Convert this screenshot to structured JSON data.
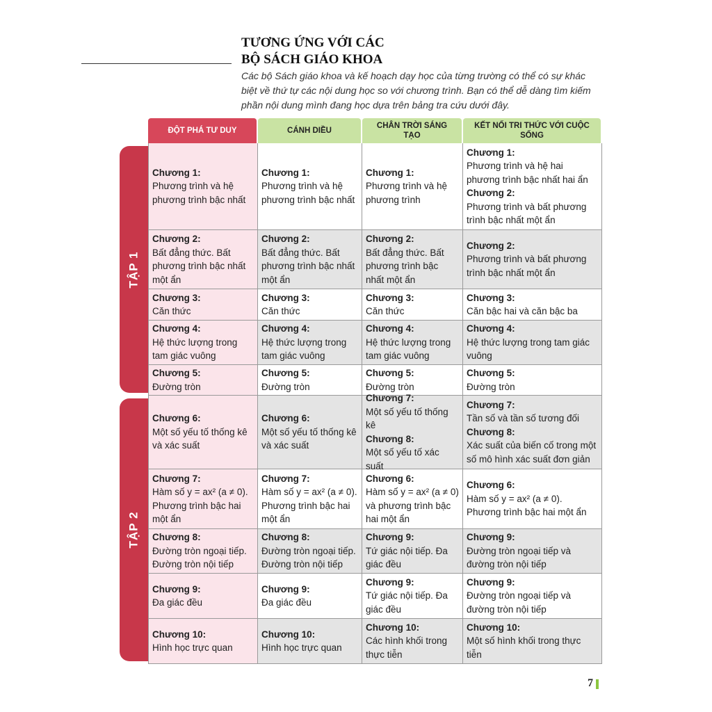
{
  "header": {
    "title_lines": [
      "TƯƠNG ỨNG VỚI CÁC",
      "BỘ SÁCH GIÁO KHOA"
    ],
    "intro": "Các bộ Sách giáo khoa và kế hoạch dạy học của từng trường có thể có sự khác biệt về thứ tự các nội dung học so với chương trình. Bạn có thể dễ dàng tìm kiếm phần nội dung mình đang học dựa trên bảng tra cứu dưới đây."
  },
  "table": {
    "columns": [
      "ĐỘT PHÁ TƯ DUY",
      "CÁNH DIỀU",
      "CHÂN TRỜI SÁNG TẠO",
      "KẾT NỐI TRI THỨC VỚI CUỘC SỐNG"
    ],
    "groups": [
      {
        "label": "TẬP 1",
        "rows": [
          [
            [
              {
                "chapter": "Chương 1:",
                "text": "Phương trình và hệ phương trình bậc nhất"
              }
            ],
            [
              {
                "chapter": "Chương 1:",
                "text": "Phương trình và hệ phương trình bậc nhất"
              }
            ],
            [
              {
                "chapter": "Chương 1:",
                "text": "Phương trình và hệ phương trình"
              }
            ],
            [
              {
                "chapter": "Chương 1:",
                "text": "Phương trình và hệ hai phương trình bậc nhất hai ẩn"
              },
              {
                "chapter": "Chương 2:",
                "text": "Phương trình và bất phương trình bậc nhất một ẩn"
              }
            ]
          ],
          [
            [
              {
                "chapter": "Chương 2:",
                "text": "Bất đẳng thức. Bất phương trình bậc nhất một ẩn"
              }
            ],
            [
              {
                "chapter": "Chương 2:",
                "text": "Bất đẳng thức. Bất phương trình bậc nhất một ẩn"
              }
            ],
            [
              {
                "chapter": "Chương 2:",
                "text": "Bất đẳng thức. Bất phương trình bậc nhất một ẩn"
              }
            ],
            [
              {
                "chapter": "Chương 2:",
                "text": "Phương trình và bất phương trình bậc nhất một ẩn"
              }
            ]
          ],
          [
            [
              {
                "chapter": "Chương 3:",
                "text": "Căn thức"
              }
            ],
            [
              {
                "chapter": "Chương 3:",
                "text": "Căn thức"
              }
            ],
            [
              {
                "chapter": "Chương 3:",
                "text": "Căn thức"
              }
            ],
            [
              {
                "chapter": "Chương 3:",
                "text": "Căn bậc hai và căn bậc ba"
              }
            ]
          ],
          [
            [
              {
                "chapter": "Chương 4:",
                "text": "Hệ thức lượng trong tam giác vuông"
              }
            ],
            [
              {
                "chapter": "Chương 4:",
                "text": "Hệ thức lượng trong tam giác vuông"
              }
            ],
            [
              {
                "chapter": "Chương 4:",
                "text": "Hệ thức lượng trong tam giác vuông"
              }
            ],
            [
              {
                "chapter": "Chương 4:",
                "text": "Hệ thức lượng trong tam giác vuông"
              }
            ]
          ],
          [
            [
              {
                "chapter": "Chương 5:",
                "text": "Đường tròn"
              }
            ],
            [
              {
                "chapter": "Chương 5:",
                "text": "Đường tròn"
              }
            ],
            [
              {
                "chapter": "Chương 5:",
                "text": "Đường tròn"
              }
            ],
            [
              {
                "chapter": "Chương 5:",
                "text": "Đường tròn"
              }
            ]
          ]
        ]
      },
      {
        "label": "TẬP 2",
        "rows": [
          [
            [
              {
                "chapter": "Chương 6:",
                "text": "Một số yếu tố thống kê và xác suất"
              }
            ],
            [
              {
                "chapter": "Chương 6:",
                "text": "Một số yếu tố thống kê và xác suất"
              }
            ],
            [
              {
                "chapter": "Chương 7:",
                "text": "Một số yếu tố thống kê"
              },
              {
                "chapter": "Chương 8:",
                "text": "Một số yếu tố xác suất"
              }
            ],
            [
              {
                "chapter": "Chương 7:",
                "text": "Tần số và tần số tương đối"
              },
              {
                "chapter": "Chương 8:",
                "text": "Xác suất của biến cố trong một số mô hình xác suất đơn giản"
              }
            ]
          ],
          [
            [
              {
                "chapter": "Chương 7:",
                "text": "Hàm số y = ax² (a ≠ 0). Phương trình bậc hai một ẩn"
              }
            ],
            [
              {
                "chapter": "Chương 7:",
                "text": "Hàm số y = ax² (a ≠ 0). Phương trình bậc hai một ẩn"
              }
            ],
            [
              {
                "chapter": "Chương 6:",
                "text": "Hàm số y = ax² (a ≠ 0) và phương trình bậc hai một ẩn"
              }
            ],
            [
              {
                "chapter": "Chương 6:",
                "text": "Hàm số y = ax² (a ≠ 0). Phương trình bậc hai một ẩn"
              }
            ]
          ],
          [
            [
              {
                "chapter": "Chương 8:",
                "text": "Đường tròn ngoại tiếp. Đường tròn nội tiếp"
              }
            ],
            [
              {
                "chapter": "Chương 8:",
                "text": "Đường tròn ngoại tiếp. Đường tròn nội tiếp"
              }
            ],
            [
              {
                "chapter": "Chương 9:",
                "text": "Tứ giác nội tiếp. Đa giác đều"
              }
            ],
            [
              {
                "chapter": "Chương 9:",
                "text": "Đường tròn ngoại tiếp và đường tròn nội tiếp"
              }
            ]
          ],
          [
            [
              {
                "chapter": "Chương 9:",
                "text": "Đa giác đều"
              }
            ],
            [
              {
                "chapter": "Chương 9:",
                "text": "Đa giác đều"
              }
            ],
            [
              {
                "chapter": "Chương 9:",
                "text": "Tứ giác nội tiếp. Đa giác đều"
              }
            ],
            [
              {
                "chapter": "Chương 9:",
                "text": "Đường tròn ngoại tiếp và đường tròn nội tiếp"
              }
            ]
          ],
          [
            [
              {
                "chapter": "Chương 10:",
                "text": "Hình học trực quan"
              }
            ],
            [
              {
                "chapter": "Chương 10:",
                "text": "Hình học trực quan"
              }
            ],
            [
              {
                "chapter": "Chương 10:",
                "text": "Các hình khối trong thực tiễn"
              }
            ],
            [
              {
                "chapter": "Chương 10:",
                "text": "Một số hình khối trong thực tiễn"
              }
            ]
          ]
        ]
      }
    ]
  },
  "page_number": "7"
}
